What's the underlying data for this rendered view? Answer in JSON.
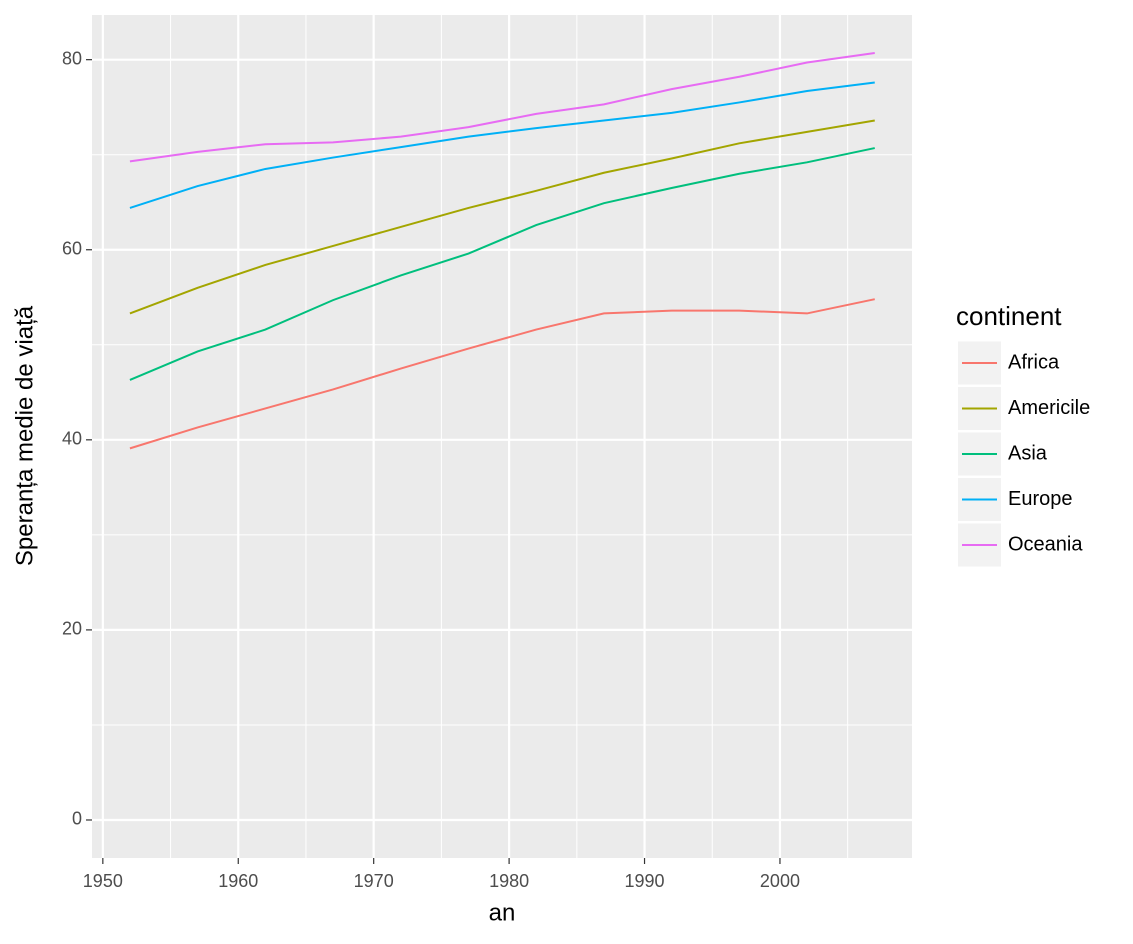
{
  "chart_data": {
    "type": "line",
    "x_label": "an",
    "y_label": "Speranța medie de viață",
    "legend_title": "continent",
    "x": [
      1952,
      1957,
      1962,
      1967,
      1972,
      1977,
      1982,
      1987,
      1992,
      1997,
      2002,
      2007
    ],
    "series": [
      {
        "name": "Africa",
        "color": "#f8766d",
        "values": [
          39.1,
          41.3,
          43.3,
          45.3,
          47.5,
          49.6,
          51.6,
          53.3,
          53.6,
          53.6,
          53.3,
          54.8
        ]
      },
      {
        "name": "Americile",
        "color": "#a3a500",
        "values": [
          53.3,
          56.0,
          58.4,
          60.4,
          62.4,
          64.4,
          66.2,
          68.1,
          69.6,
          71.2,
          72.4,
          73.6
        ]
      },
      {
        "name": "Asia",
        "color": "#00bf7d",
        "values": [
          46.3,
          49.3,
          51.6,
          54.7,
          57.3,
          59.6,
          62.6,
          64.9,
          66.5,
          68.0,
          69.2,
          70.7
        ]
      },
      {
        "name": "Europe",
        "color": "#00b0f6",
        "values": [
          64.4,
          66.7,
          68.5,
          69.7,
          70.8,
          71.9,
          72.8,
          73.6,
          74.4,
          75.5,
          76.7,
          77.6
        ]
      },
      {
        "name": "Oceania",
        "color": "#e76bf3",
        "values": [
          69.3,
          70.3,
          71.1,
          71.3,
          71.9,
          72.9,
          74.3,
          75.3,
          76.9,
          78.2,
          79.7,
          80.7
        ]
      }
    ],
    "xlim": [
      1949.2,
      2009.75
    ],
    "ylim": [
      -4,
      84.7
    ],
    "xticks": [
      1950,
      1960,
      1970,
      1980,
      1990,
      2000
    ],
    "yticks": [
      0,
      20,
      40,
      60,
      80
    ],
    "grid": true,
    "legend": "right"
  }
}
